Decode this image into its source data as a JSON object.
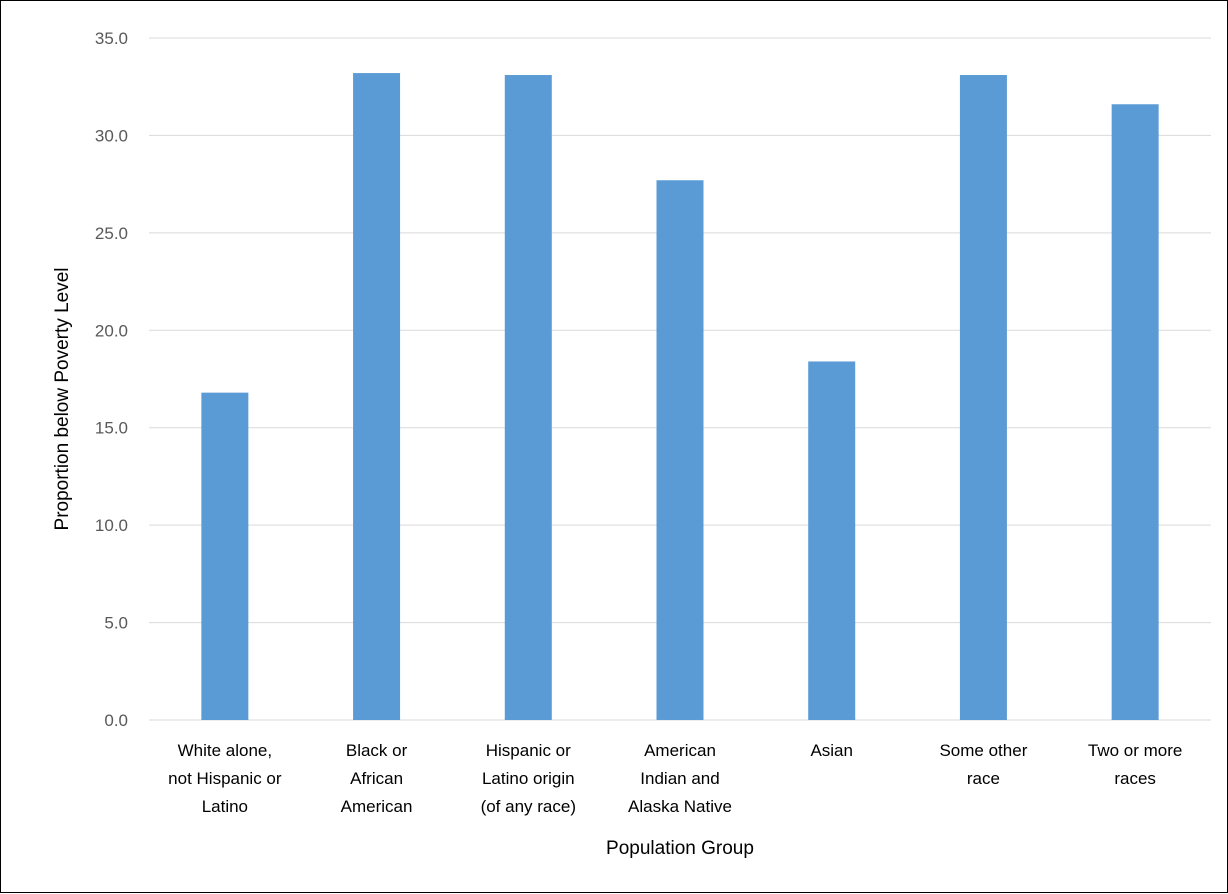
{
  "chart_data": {
    "type": "bar",
    "title": "",
    "xlabel": "Population Group",
    "ylabel": "Proportion below Poverty Level",
    "categories": [
      [
        "White alone,",
        "not Hispanic or",
        "Latino"
      ],
      [
        "Black or",
        "African",
        "American"
      ],
      [
        "Hispanic or",
        "Latino origin",
        "(of any race)"
      ],
      [
        "American",
        "Indian and",
        "Alaska Native"
      ],
      [
        "Asian"
      ],
      [
        "Some other",
        "race"
      ],
      [
        "Two or more",
        "races"
      ]
    ],
    "values": [
      16.8,
      33.2,
      33.1,
      27.7,
      18.4,
      33.1,
      31.6
    ],
    "ylim": [
      0,
      35
    ],
    "yticks": [
      "0.0",
      "5.0",
      "10.0",
      "15.0",
      "20.0",
      "25.0",
      "30.0",
      "35.0"
    ],
    "grid": true,
    "bar_color": "#5B9BD5",
    "grid_color": "#D9D9D9"
  }
}
